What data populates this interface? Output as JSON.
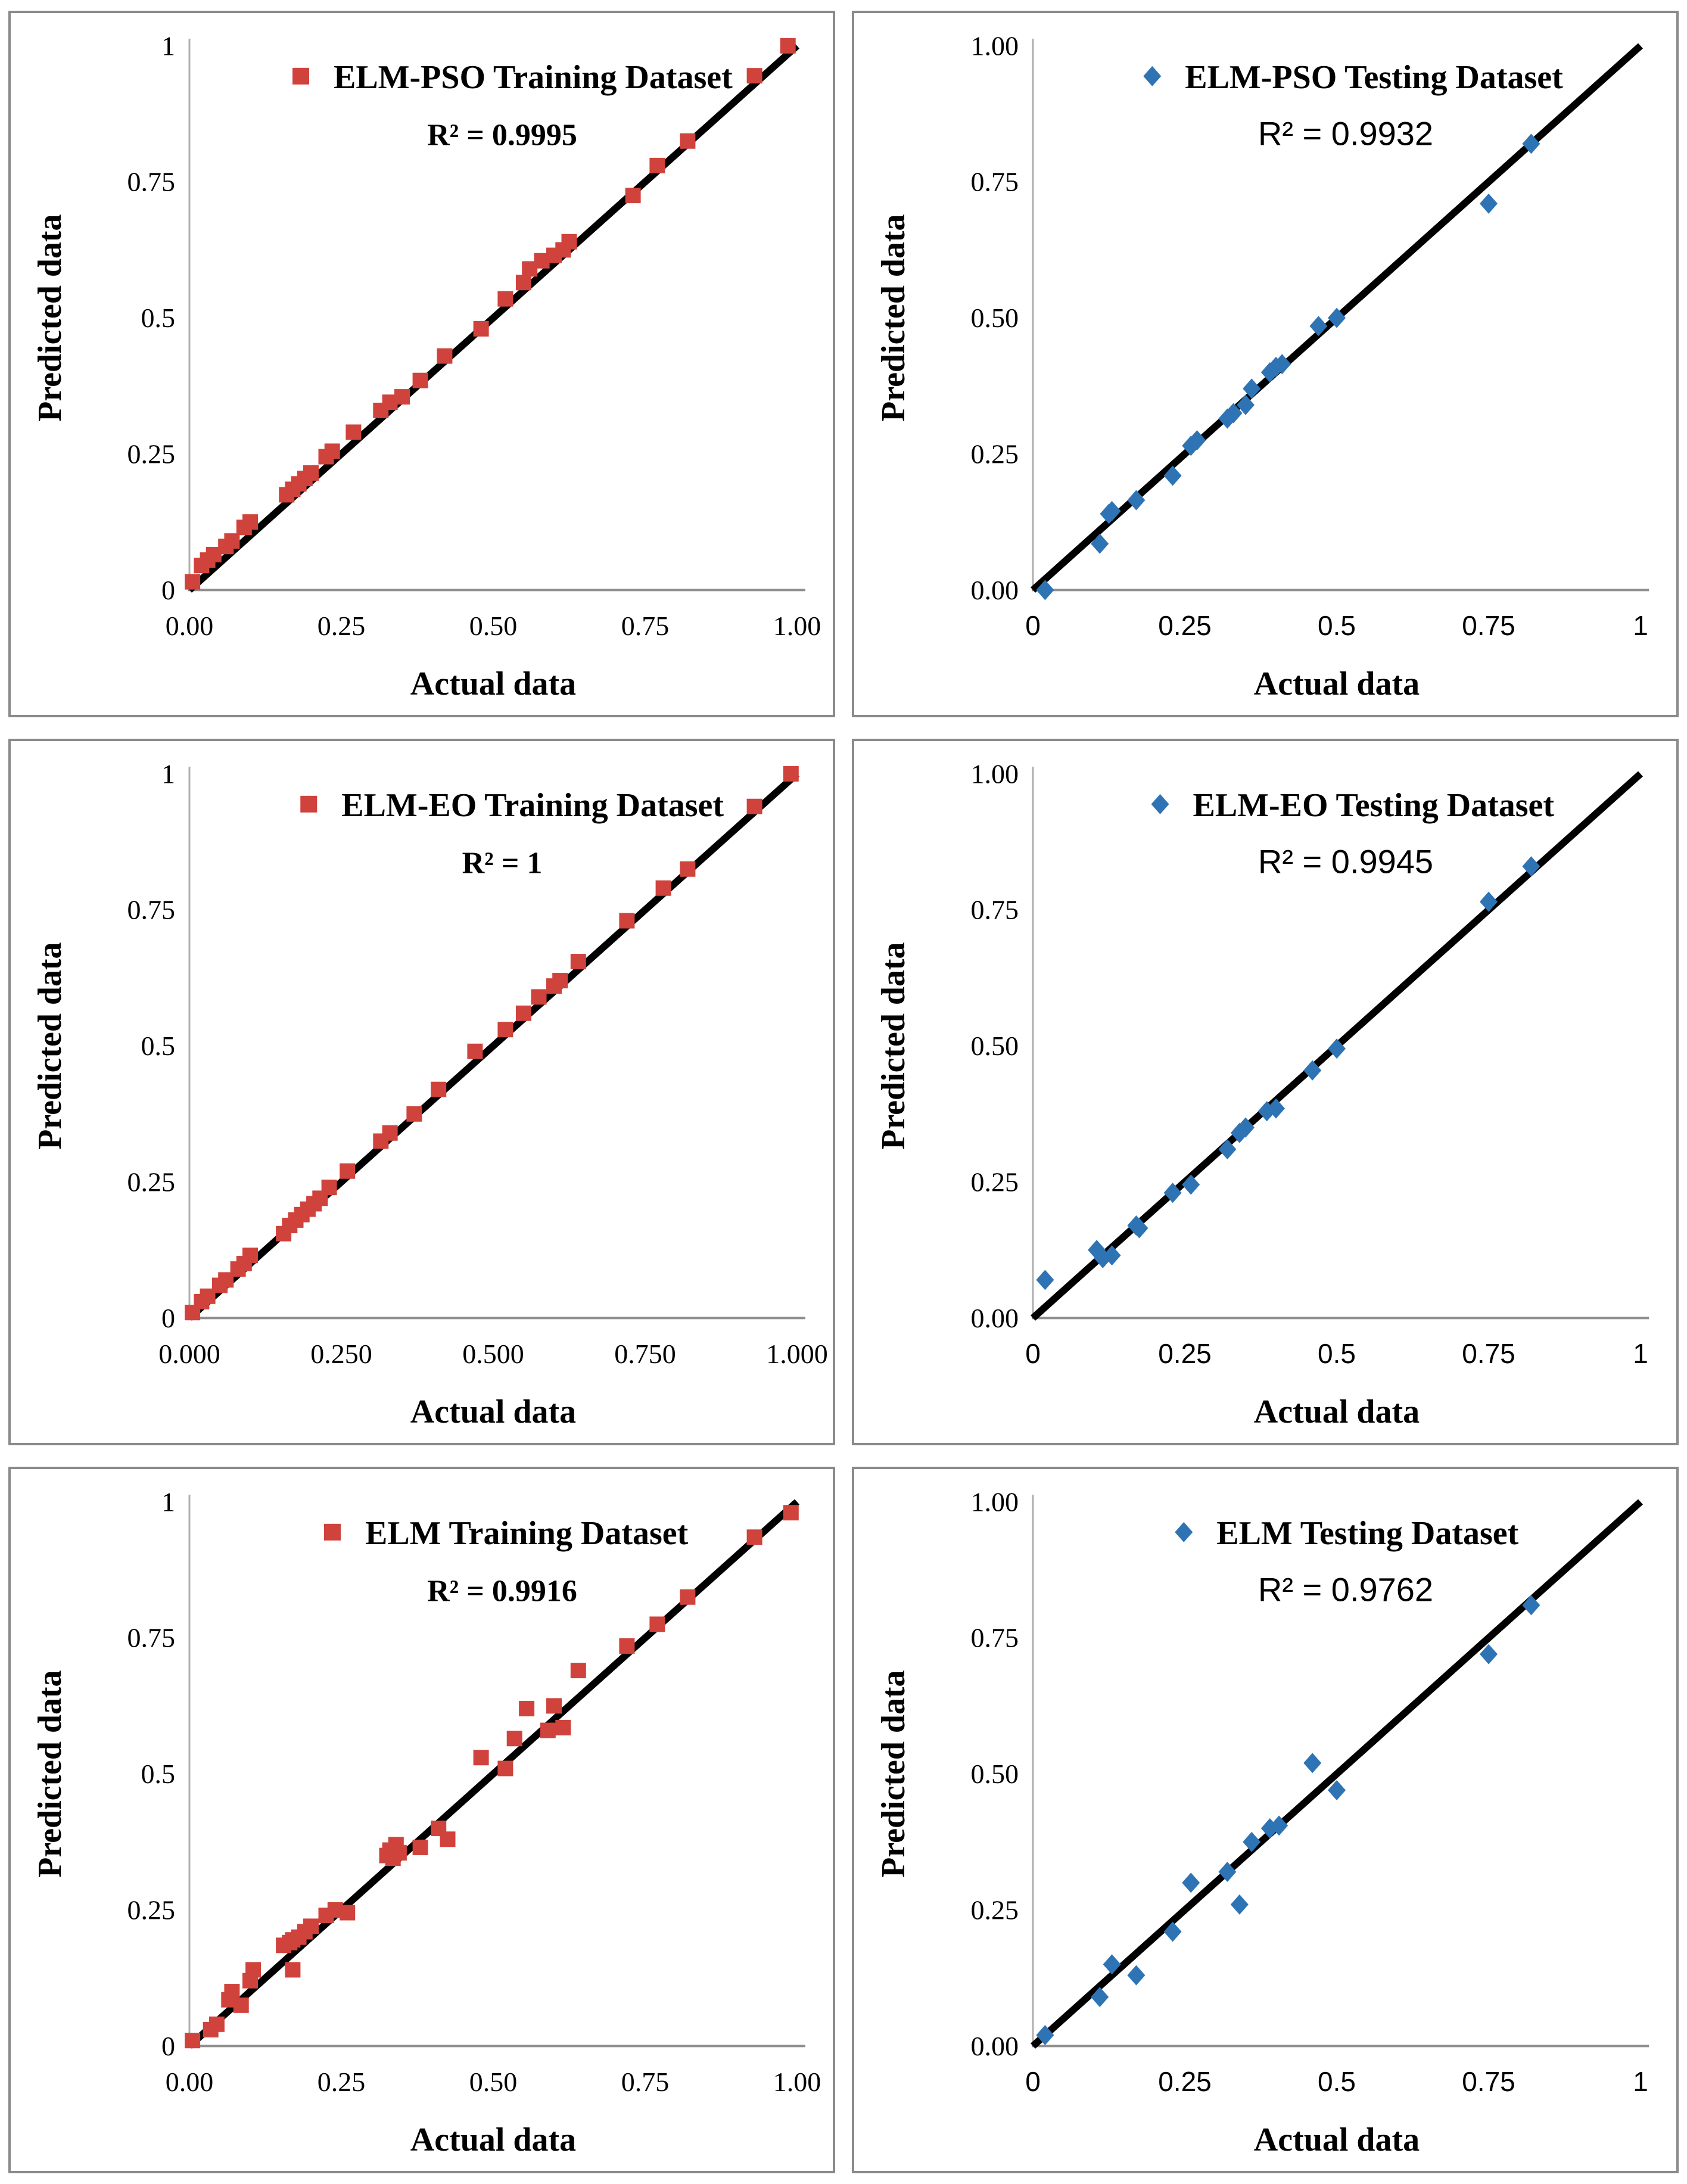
{
  "colors": {
    "red_marker": "#D0423C",
    "blue_marker": "#2E74B5",
    "trend_line": "#000000",
    "x_axis": "#8F8F8F",
    "y_axis": "#AFAFAF",
    "panel_border": "#8A8A8A",
    "text": "#000000"
  },
  "chart_data": [
    {
      "type": "scatter",
      "position": "row1-left",
      "legend_label": "ELM-PSO Training Dataset",
      "r2_text": "R² = 0.9995",
      "r2_value": 0.9995,
      "marker_shape": "square",
      "marker_color": "#D0423C",
      "xlabel": "Actual data",
      "ylabel": "Predicted data",
      "xlim": [
        0,
        1
      ],
      "ylim": [
        0,
        1
      ],
      "grid": false,
      "legend_position": "top-center-inside",
      "x_tick_labels": [
        "0.00",
        "0.25",
        "0.50",
        "0.75",
        "1.00"
      ],
      "y_tick_labels": [
        "0",
        "0.25",
        "0.5",
        "0.75",
        "1"
      ],
      "x_tick_font": "serif",
      "r2_font": "serif",
      "trend_line": {
        "from": [
          0,
          0
        ],
        "to": [
          1,
          1
        ]
      },
      "points": [
        [
          0.005,
          0.015
        ],
        [
          0.02,
          0.045
        ],
        [
          0.03,
          0.055
        ],
        [
          0.04,
          0.065
        ],
        [
          0.06,
          0.08
        ],
        [
          0.07,
          0.09
        ],
        [
          0.09,
          0.115
        ],
        [
          0.1,
          0.125
        ],
        [
          0.16,
          0.175
        ],
        [
          0.17,
          0.185
        ],
        [
          0.18,
          0.195
        ],
        [
          0.19,
          0.205
        ],
        [
          0.2,
          0.215
        ],
        [
          0.225,
          0.245
        ],
        [
          0.235,
          0.255
        ],
        [
          0.27,
          0.29
        ],
        [
          0.315,
          0.33
        ],
        [
          0.33,
          0.345
        ],
        [
          0.35,
          0.355
        ],
        [
          0.38,
          0.385
        ],
        [
          0.42,
          0.43
        ],
        [
          0.48,
          0.48
        ],
        [
          0.52,
          0.535
        ],
        [
          0.55,
          0.565
        ],
        [
          0.56,
          0.59
        ],
        [
          0.58,
          0.605
        ],
        [
          0.6,
          0.615
        ],
        [
          0.615,
          0.625
        ],
        [
          0.625,
          0.64
        ],
        [
          0.73,
          0.725
        ],
        [
          0.77,
          0.78
        ],
        [
          0.82,
          0.825
        ],
        [
          0.93,
          0.945
        ],
        [
          0.985,
          1.0
        ]
      ]
    },
    {
      "type": "scatter",
      "position": "row1-right",
      "legend_label": "ELM-PSO Testing Dataset",
      "r2_text": "R² = 0.9932",
      "r2_value": 0.9932,
      "marker_shape": "diamond",
      "marker_color": "#2E74B5",
      "xlabel": "Actual data",
      "ylabel": "Predicted data",
      "xlim": [
        0,
        1
      ],
      "ylim": [
        0,
        1
      ],
      "grid": false,
      "legend_position": "top-center-inside",
      "x_tick_labels": [
        "0",
        "0.25",
        "0.5",
        "0.75",
        "1"
      ],
      "y_tick_labels": [
        "0.00",
        "0.25",
        "0.50",
        "0.75",
        "1.00"
      ],
      "x_tick_font": "sans",
      "r2_font": "sans",
      "trend_line": {
        "from": [
          0,
          0
        ],
        "to": [
          1,
          1
        ]
      },
      "points": [
        [
          0.02,
          0.0
        ],
        [
          0.11,
          0.085
        ],
        [
          0.125,
          0.14
        ],
        [
          0.13,
          0.145
        ],
        [
          0.17,
          0.165
        ],
        [
          0.23,
          0.21
        ],
        [
          0.26,
          0.265
        ],
        [
          0.27,
          0.275
        ],
        [
          0.32,
          0.315
        ],
        [
          0.33,
          0.325
        ],
        [
          0.35,
          0.34
        ],
        [
          0.36,
          0.37
        ],
        [
          0.39,
          0.4
        ],
        [
          0.4,
          0.41
        ],
        [
          0.41,
          0.415
        ],
        [
          0.47,
          0.485
        ],
        [
          0.5,
          0.5
        ],
        [
          0.75,
          0.71
        ],
        [
          0.82,
          0.82
        ]
      ]
    },
    {
      "type": "scatter",
      "position": "row2-left",
      "legend_label": "ELM-EO Training Dataset",
      "r2_text": "R² = 1",
      "r2_value": 1,
      "marker_shape": "square",
      "marker_color": "#D0423C",
      "xlabel": "Actual data",
      "ylabel": "Predicted data",
      "xlim": [
        0,
        1
      ],
      "ylim": [
        0,
        1
      ],
      "grid": false,
      "legend_position": "top-center-inside",
      "x_tick_labels": [
        "0.000",
        "0.250",
        "0.500",
        "0.750",
        "1.000"
      ],
      "y_tick_labels": [
        "0",
        "0.25",
        "0.5",
        "0.75",
        "1"
      ],
      "x_tick_font": "serif",
      "r2_font": "serif",
      "trend_line": {
        "from": [
          0,
          0
        ],
        "to": [
          1,
          1
        ]
      },
      "points": [
        [
          0.005,
          0.01
        ],
        [
          0.02,
          0.03
        ],
        [
          0.03,
          0.04
        ],
        [
          0.05,
          0.06
        ],
        [
          0.06,
          0.07
        ],
        [
          0.08,
          0.09
        ],
        [
          0.09,
          0.1
        ],
        [
          0.1,
          0.115
        ],
        [
          0.155,
          0.155
        ],
        [
          0.165,
          0.17
        ],
        [
          0.175,
          0.18
        ],
        [
          0.185,
          0.19
        ],
        [
          0.195,
          0.2
        ],
        [
          0.205,
          0.21
        ],
        [
          0.215,
          0.22
        ],
        [
          0.23,
          0.24
        ],
        [
          0.26,
          0.27
        ],
        [
          0.315,
          0.325
        ],
        [
          0.33,
          0.34
        ],
        [
          0.37,
          0.375
        ],
        [
          0.41,
          0.42
        ],
        [
          0.47,
          0.49
        ],
        [
          0.52,
          0.53
        ],
        [
          0.55,
          0.56
        ],
        [
          0.575,
          0.59
        ],
        [
          0.6,
          0.61
        ],
        [
          0.61,
          0.62
        ],
        [
          0.64,
          0.655
        ],
        [
          0.72,
          0.73
        ],
        [
          0.78,
          0.79
        ],
        [
          0.82,
          0.825
        ],
        [
          0.93,
          0.94
        ],
        [
          0.99,
          1.0
        ]
      ]
    },
    {
      "type": "scatter",
      "position": "row2-right",
      "legend_label": "ELM-EO Testing Dataset",
      "r2_text": "R² = 0.9945",
      "r2_value": 0.9945,
      "marker_shape": "diamond",
      "marker_color": "#2E74B5",
      "xlabel": "Actual data",
      "ylabel": "Predicted data",
      "xlim": [
        0,
        1
      ],
      "ylim": [
        0,
        1
      ],
      "grid": false,
      "legend_position": "top-center-inside",
      "x_tick_labels": [
        "0",
        "0.25",
        "0.5",
        "0.75",
        "1"
      ],
      "y_tick_labels": [
        "0.00",
        "0.25",
        "0.50",
        "0.75",
        "1.00"
      ],
      "x_tick_font": "sans",
      "r2_font": "sans",
      "trend_line": {
        "from": [
          0,
          0
        ],
        "to": [
          1,
          1
        ]
      },
      "points": [
        [
          0.02,
          0.07
        ],
        [
          0.105,
          0.125
        ],
        [
          0.115,
          0.11
        ],
        [
          0.13,
          0.115
        ],
        [
          0.17,
          0.17
        ],
        [
          0.175,
          0.165
        ],
        [
          0.23,
          0.23
        ],
        [
          0.26,
          0.245
        ],
        [
          0.32,
          0.31
        ],
        [
          0.34,
          0.34
        ],
        [
          0.35,
          0.35
        ],
        [
          0.385,
          0.38
        ],
        [
          0.4,
          0.385
        ],
        [
          0.46,
          0.455
        ],
        [
          0.5,
          0.495
        ],
        [
          0.75,
          0.765
        ],
        [
          0.82,
          0.83
        ]
      ]
    },
    {
      "type": "scatter",
      "position": "row3-left",
      "legend_label": "ELM Training Dataset",
      "r2_text": "R² = 0.9916",
      "r2_value": 0.9916,
      "marker_shape": "square",
      "marker_color": "#D0423C",
      "xlabel": "Actual data",
      "ylabel": "Predicted data",
      "xlim": [
        0,
        1
      ],
      "ylim": [
        0,
        1
      ],
      "grid": false,
      "legend_position": "top-center-inside",
      "x_tick_labels": [
        "0.00",
        "0.25",
        "0.50",
        "0.75",
        "1.00"
      ],
      "y_tick_labels": [
        "0",
        "0.25",
        "0.5",
        "0.75",
        "1"
      ],
      "x_tick_font": "serif",
      "r2_font": "serif",
      "trend_line": {
        "from": [
          0,
          0
        ],
        "to": [
          1,
          1
        ]
      },
      "points": [
        [
          0.005,
          0.01
        ],
        [
          0.035,
          0.03
        ],
        [
          0.045,
          0.04
        ],
        [
          0.065,
          0.085
        ],
        [
          0.07,
          0.1
        ],
        [
          0.085,
          0.075
        ],
        [
          0.1,
          0.12
        ],
        [
          0.105,
          0.14
        ],
        [
          0.155,
          0.185
        ],
        [
          0.165,
          0.19
        ],
        [
          0.17,
          0.195
        ],
        [
          0.18,
          0.2
        ],
        [
          0.19,
          0.21
        ],
        [
          0.2,
          0.22
        ],
        [
          0.17,
          0.14
        ],
        [
          0.225,
          0.24
        ],
        [
          0.24,
          0.25
        ],
        [
          0.26,
          0.245
        ],
        [
          0.325,
          0.35
        ],
        [
          0.33,
          0.36
        ],
        [
          0.335,
          0.345
        ],
        [
          0.34,
          0.37
        ],
        [
          0.345,
          0.355
        ],
        [
          0.38,
          0.365
        ],
        [
          0.41,
          0.4
        ],
        [
          0.425,
          0.38
        ],
        [
          0.48,
          0.53
        ],
        [
          0.52,
          0.51
        ],
        [
          0.535,
          0.565
        ],
        [
          0.555,
          0.62
        ],
        [
          0.59,
          0.58
        ],
        [
          0.6,
          0.625
        ],
        [
          0.615,
          0.585
        ],
        [
          0.64,
          0.69
        ],
        [
          0.72,
          0.735
        ],
        [
          0.77,
          0.775
        ],
        [
          0.82,
          0.825
        ],
        [
          0.93,
          0.935
        ],
        [
          0.99,
          0.98
        ]
      ]
    },
    {
      "type": "scatter",
      "position": "row3-right",
      "legend_label": "ELM Testing Dataset",
      "r2_text": "R² = 0.9762",
      "r2_value": 0.9762,
      "marker_shape": "diamond",
      "marker_color": "#2E74B5",
      "xlabel": "Actual data",
      "ylabel": "Predicted data",
      "xlim": [
        0,
        1
      ],
      "ylim": [
        0,
        1
      ],
      "grid": false,
      "legend_position": "top-center-inside",
      "x_tick_labels": [
        "0",
        "0.25",
        "0.5",
        "0.75",
        "1"
      ],
      "y_tick_labels": [
        "0.00",
        "0.25",
        "0.50",
        "0.75",
        "1.00"
      ],
      "x_tick_font": "sans",
      "r2_font": "sans",
      "trend_line": {
        "from": [
          0,
          0
        ],
        "to": [
          1,
          1
        ]
      },
      "points": [
        [
          0.02,
          0.02
        ],
        [
          0.11,
          0.09
        ],
        [
          0.13,
          0.15
        ],
        [
          0.17,
          0.13
        ],
        [
          0.23,
          0.21
        ],
        [
          0.26,
          0.3
        ],
        [
          0.32,
          0.32
        ],
        [
          0.34,
          0.26
        ],
        [
          0.36,
          0.375
        ],
        [
          0.39,
          0.4
        ],
        [
          0.405,
          0.405
        ],
        [
          0.46,
          0.52
        ],
        [
          0.5,
          0.47
        ],
        [
          0.75,
          0.72
        ],
        [
          0.82,
          0.81
        ]
      ]
    }
  ]
}
